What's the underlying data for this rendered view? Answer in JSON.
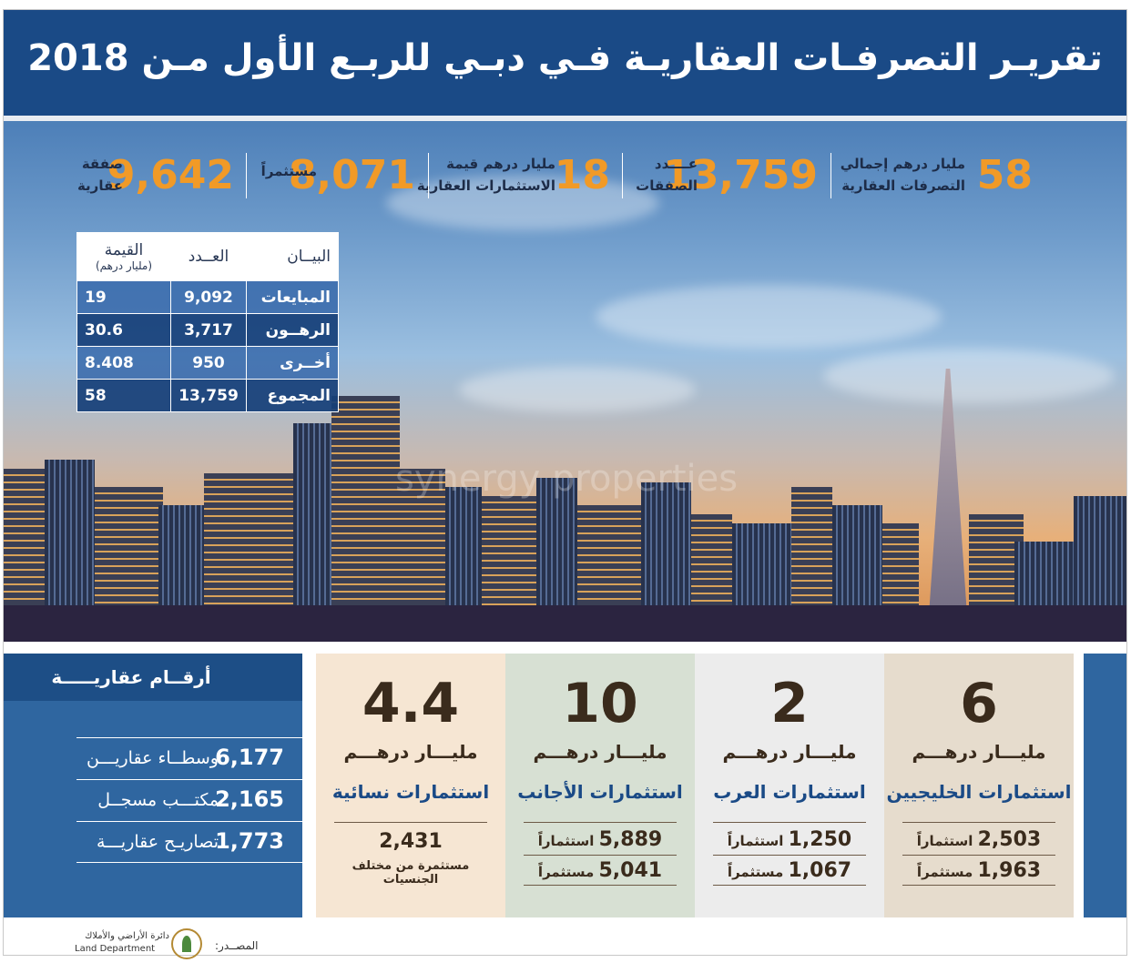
{
  "title": "تقريـر التصرفـات العقاريـة فـي دبـي للربـع الأول مـن 2018",
  "stats": [
    {
      "value": "58",
      "label_line1": "مليار درهم إجمالي",
      "label_line2": "التصرفات العقارية"
    },
    {
      "value": "13,759",
      "label_line1": "عــــدد",
      "label_line2": "الصفقات"
    },
    {
      "value": "18",
      "label_line1": "مليار درهم قيمة",
      "label_line2": "الاستثمارات العقارية"
    },
    {
      "value": "8,071",
      "label_line1": "مستثمراً",
      "label_line2": ""
    },
    {
      "value": "9,642",
      "label_line1": "صفقة",
      "label_line2": "عقارية"
    }
  ],
  "table": {
    "headers": [
      "البيــان",
      "العــدد",
      "القيمة"
    ],
    "value_unit": "(مليار درهم)",
    "rows": [
      {
        "label": "المبايعات",
        "count": "9,092",
        "value": "19"
      },
      {
        "label": "الرهــون",
        "count": "3,717",
        "value": "30.6"
      },
      {
        "label": "أخــرى",
        "count": "950",
        "value": "8.408"
      },
      {
        "label": "المجموع",
        "count": "13,759",
        "value": "58"
      }
    ]
  },
  "watermark": "synergy properties",
  "real_estate_figures": {
    "heading": "أرقــام عقاريـــــة",
    "items": [
      {
        "number": "6,177",
        "label": "وسطــاء عقاريـــن"
      },
      {
        "number": "2,165",
        "label": "مكتـــب مسجــل"
      },
      {
        "number": "1,773",
        "label": "تصاريـح عقاريـــة"
      }
    ]
  },
  "panels": [
    {
      "big": "6",
      "unit": "مليـــار درهـــم",
      "name": "استثمارات الخليجيين",
      "row1_num": "2,503",
      "row1_lbl": "استثماراً",
      "row2_num": "1,963",
      "row2_lbl": "مستثمراً",
      "color": "#e6dccd"
    },
    {
      "big": "2",
      "unit": "مليـــار درهـــم",
      "name": "استثمارات العرب",
      "row1_num": "1,250",
      "row1_lbl": "استثماراً",
      "row2_num": "1,067",
      "row2_lbl": "مستثمراً",
      "color": "#ececec"
    },
    {
      "big": "10",
      "unit": "مليـــار درهـــم",
      "name": "استثمارات الأجانب",
      "row1_num": "5,889",
      "row1_lbl": "استثماراً",
      "row2_num": "5,041",
      "row2_lbl": "مستثمراً",
      "color": "#d7e0d3"
    },
    {
      "big": "4.4",
      "unit": "مليـــار درهـــم",
      "name": "استثمارات نسائية",
      "row1_num": "2,431",
      "row1_lbl": "مستثمرة من مختلف الجنسيات",
      "color": "#f6e6d3"
    }
  ],
  "source_label": "المصــدر:",
  "logo_text_ar": "دائرة الأراضي والأملاك",
  "logo_text_en": "Land Department",
  "colors": {
    "title_bg": "#1a4a86",
    "accent": "#f19a27",
    "panel_text": "#3a2b1c"
  }
}
